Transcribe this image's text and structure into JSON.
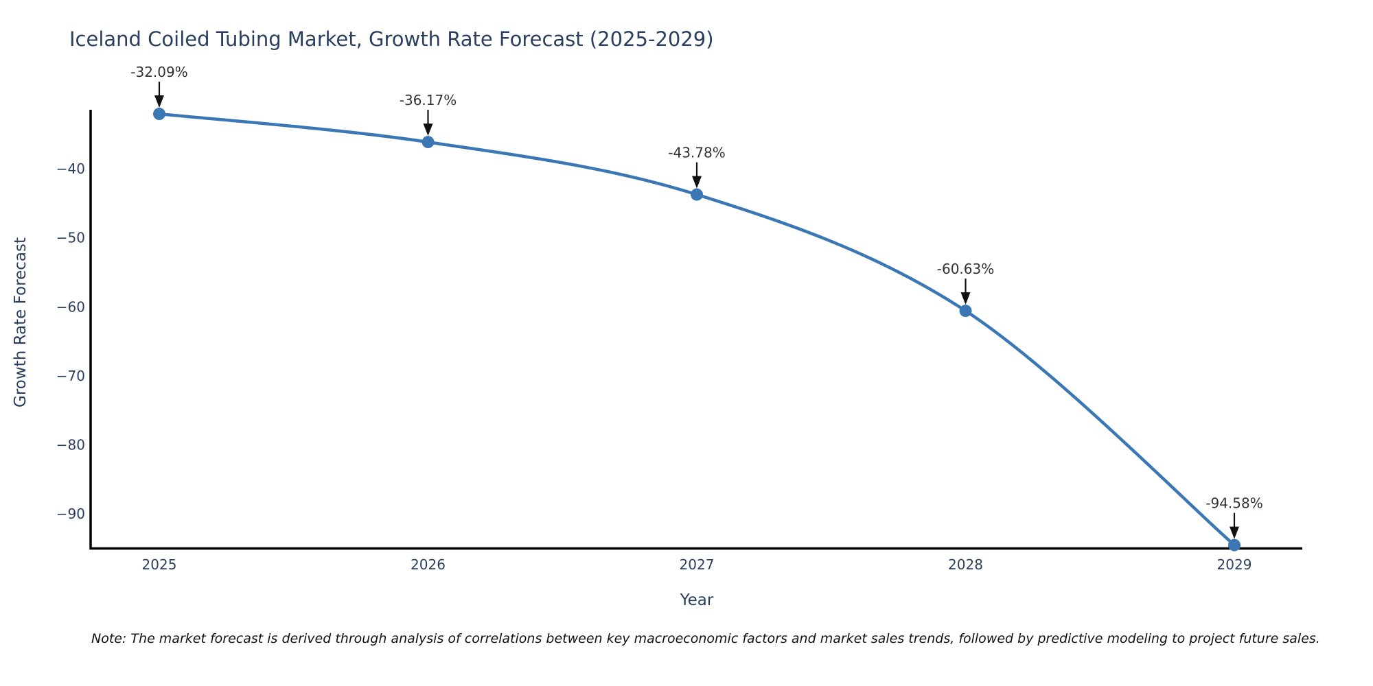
{
  "title": "Iceland Coiled Tubing Market, Growth Rate Forecast (2025-2029)",
  "note": "Note: The market forecast is derived through analysis of correlations between key macroeconomic factors and market sales trends, followed by predictive modeling to project future sales.",
  "chart_data": {
    "type": "line",
    "title": "Iceland Coiled Tubing Market, Growth Rate Forecast (2025-2029)",
    "xlabel": "Year",
    "ylabel": "Growth Rate Forecast",
    "categories": [
      "2025",
      "2026",
      "2027",
      "2028",
      "2029"
    ],
    "series": [
      {
        "name": "Growth Rate Forecast",
        "values": [
          -32.09,
          -36.17,
          -43.78,
          -60.63,
          -94.58
        ]
      }
    ],
    "point_labels": [
      "-32.09%",
      "-36.17%",
      "-43.78%",
      "-60.63%",
      "-94.58%"
    ],
    "yticks": {
      "labels": [
        "−40",
        "−50",
        "−60",
        "−70",
        "−80",
        "−90"
      ],
      "values": [
        -40,
        -50,
        -60,
        -70,
        -80,
        -90
      ]
    },
    "ylim": [
      -95.07,
      -31.49
    ],
    "line_shape": "spline",
    "markers": true,
    "grid": false,
    "legend_position": "none",
    "colors": {
      "line": "#3b77b5",
      "marker": "#3b77b5",
      "axis_line": "#000000",
      "font": "#2a3f5f",
      "annotation_text": "#2e3338",
      "annotation_arrow": "#111111",
      "background": "#ffffff"
    }
  }
}
